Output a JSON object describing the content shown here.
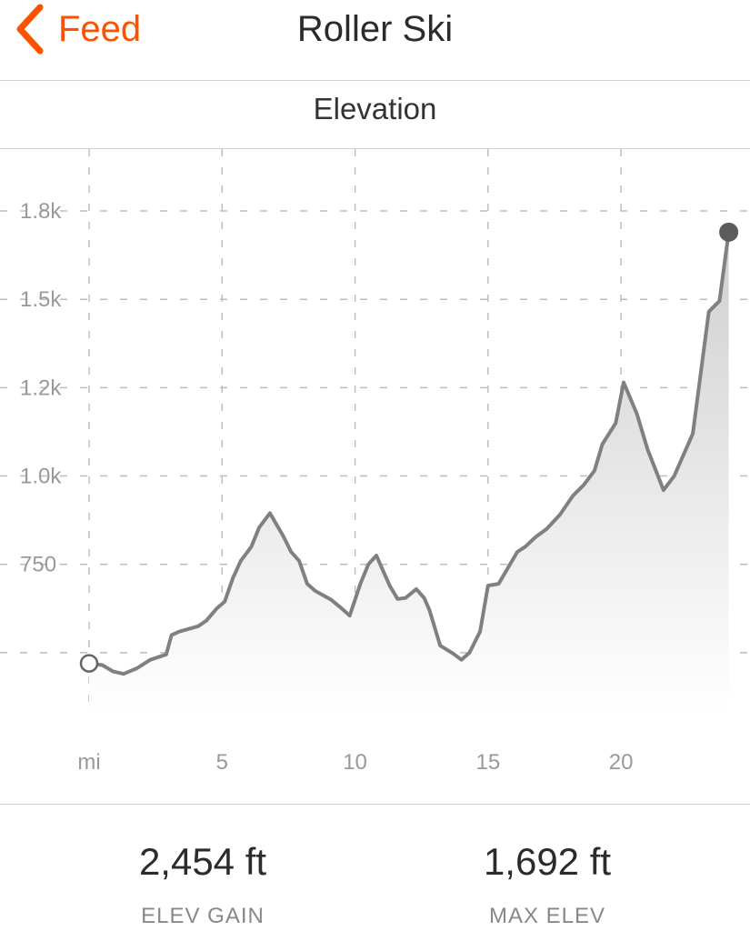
{
  "nav": {
    "back_label": "Feed",
    "title": "Roller Ski"
  },
  "section": {
    "title": "Elevation"
  },
  "chart_data": {
    "type": "area",
    "title": "",
    "xlabel": "mi",
    "ylabel": "",
    "x_ticks": [
      5,
      10,
      15,
      20
    ],
    "x_tick_labels": [
      "5",
      "10",
      "15",
      "20"
    ],
    "xlim": [
      0,
      24.2
    ],
    "y_ticks": [
      500,
      750,
      1000,
      1250,
      1500,
      1750
    ],
    "y_tick_labels": [
      "",
      "750",
      "1.0k",
      "1.2k",
      "1.5k",
      "1.8k"
    ],
    "ylim": [
      330,
      1925
    ],
    "grid": true,
    "start_marker": "open-circle",
    "end_marker": "filled-circle",
    "colors": {
      "line": "#808080",
      "fill_top": "#cfcfcf",
      "fill_bottom": "#ffffff",
      "grid": "#bdbdbd",
      "accent": "#fc5200"
    },
    "series": [
      {
        "x": [
          0,
          0.5,
          0.9,
          1.3,
          1.6,
          1.8,
          2.3,
          2.7,
          2.9,
          3.1,
          3.4,
          4.1,
          4.4,
          4.8,
          5.1,
          5.4,
          5.7,
          6.1,
          6.4,
          6.8,
          7.3,
          7.6,
          7.9,
          8.2,
          8.5,
          9.1,
          9.5,
          9.8,
          10.2,
          10.5,
          10.8,
          11.3,
          11.6,
          11.9,
          12.3,
          12.6,
          12.8,
          13.2,
          13.7,
          14.0,
          14.3,
          14.7,
          15.0,
          15.4,
          16.1,
          16.4,
          16.8,
          17.2,
          17.7,
          18.2,
          18.6,
          19.0,
          19.3,
          19.8,
          20.1,
          20.6,
          21.0,
          21.6,
          22.0,
          22.7,
          23.3,
          23.7,
          24.05
        ],
        "values": [
          470,
          465,
          447,
          440,
          450,
          456,
          480,
          490,
          495,
          550,
          560,
          575,
          590,
          625,
          645,
          710,
          760,
          800,
          855,
          895,
          830,
          785,
          760,
          695,
          675,
          650,
          625,
          605,
          695,
          750,
          775,
          690,
          652,
          655,
          680,
          655,
          620,
          520,
          497,
          480,
          500,
          560,
          690,
          695,
          785,
          800,
          828,
          850,
          890,
          945,
          975,
          1015,
          1090,
          1150,
          1265,
          1175,
          1075,
          960,
          1000,
          1120,
          1465,
          1495,
          1690
        ]
      }
    ],
    "annotations": []
  },
  "stats": [
    {
      "value": "2,454 ft",
      "label": "ELEV GAIN"
    },
    {
      "value": "1,692 ft",
      "label": "MAX ELEV"
    }
  ]
}
